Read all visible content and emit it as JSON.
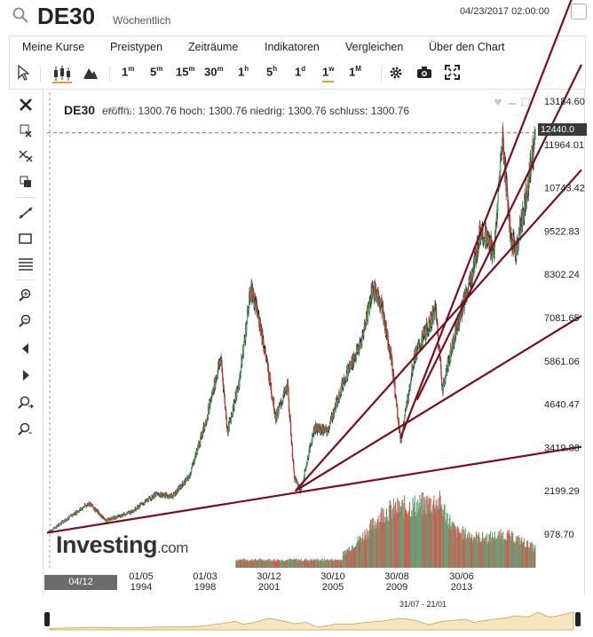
{
  "header": {
    "symbol": "DE30",
    "period": "Wöchentlich",
    "datetime": "04/23/2017 02:00:00"
  },
  "menu": [
    "Meine Kurse",
    "Preistypen",
    "Zeiträume",
    "Indikatoren",
    "Vergleichen",
    "Über den Chart"
  ],
  "toolbar": {
    "intervals": [
      {
        "num": "1",
        "unit": "m"
      },
      {
        "num": "5",
        "unit": "m"
      },
      {
        "num": "15",
        "unit": "m"
      },
      {
        "num": "30",
        "unit": "m"
      },
      {
        "num": "1",
        "unit": "h"
      },
      {
        "num": "5",
        "unit": "h"
      },
      {
        "num": "1",
        "unit": "d"
      },
      {
        "num": "1",
        "unit": "w"
      },
      {
        "num": "1",
        "unit": "M"
      }
    ],
    "active_interval": "1w"
  },
  "ohlc": {
    "symbol": "DE30",
    "text": "eröffn.: 1300.76 hoch: 1300.76 niedrig: 1300.76 schluss: 1300.76"
  },
  "current_price": "12440.0",
  "selection_tag": "04/12",
  "navigator_label": "31/07 - 21/01",
  "logo": {
    "main": "Investing",
    "suffix": ".com"
  },
  "colors": {
    "up": "#3cb371",
    "down": "#d9342b",
    "trendline": "#7a0d1e",
    "accent": "#e0a030"
  },
  "chart_data": {
    "type": "candlestick",
    "title": "DE30 Wöchentlich",
    "ylim": [
      0,
      13600
    ],
    "y_ticks": [
      "13184.60",
      "11964.01",
      "10743.42",
      "9522.83",
      "8302.24",
      "7081.65",
      "5861.06",
      "4640.47",
      "3419.88",
      "2199.29",
      "978.70"
    ],
    "x_ticks": [
      [
        "01/05",
        "1994"
      ],
      [
        "01/03",
        "1998"
      ],
      [
        "30/12",
        "2001"
      ],
      [
        "30/10",
        "2005"
      ],
      [
        "30/08",
        "2009"
      ],
      [
        "30/06",
        "2013"
      ]
    ],
    "x_range": [
      1988.0,
      2017.3
    ],
    "price_path": [
      [
        1988.0,
        1000
      ],
      [
        1990.5,
        1850
      ],
      [
        1991.5,
        1350
      ],
      [
        1993.0,
        1600
      ],
      [
        1994.5,
        2100
      ],
      [
        1995.5,
        2050
      ],
      [
        1996.5,
        2600
      ],
      [
        1997.5,
        4200
      ],
      [
        1998.4,
        6000
      ],
      [
        1998.8,
        3900
      ],
      [
        1999.5,
        5300
      ],
      [
        2000.2,
        8000
      ],
      [
        2000.8,
        6900
      ],
      [
        2001.7,
        4300
      ],
      [
        2002.4,
        5200
      ],
      [
        2002.8,
        2600
      ],
      [
        2003.2,
        2200
      ],
      [
        2004.0,
        4000
      ],
      [
        2004.8,
        3900
      ],
      [
        2005.8,
        5400
      ],
      [
        2006.8,
        6400
      ],
      [
        2007.5,
        8000
      ],
      [
        2008.0,
        7600
      ],
      [
        2008.6,
        6100
      ],
      [
        2009.2,
        3600
      ],
      [
        2010.0,
        6000
      ],
      [
        2011.3,
        7400
      ],
      [
        2011.7,
        5100
      ],
      [
        2012.5,
        6800
      ],
      [
        2013.5,
        8400
      ],
      [
        2014.0,
        9700
      ],
      [
        2014.8,
        9000
      ],
      [
        2015.3,
        12300
      ],
      [
        2015.8,
        9400
      ],
      [
        2016.1,
        9000
      ],
      [
        2016.6,
        10300
      ],
      [
        2017.0,
        11500
      ],
      [
        2017.3,
        12440
      ]
    ],
    "volume_peaks": [
      [
        2005.7,
        0.2
      ],
      [
        2007.0,
        0.5
      ],
      [
        2008.2,
        0.85
      ],
      [
        2009.0,
        0.9
      ],
      [
        2011.5,
        1.0
      ],
      [
        2012.5,
        0.55
      ],
      [
        2014.0,
        0.45
      ],
      [
        2015.5,
        0.5
      ],
      [
        2016.5,
        0.4
      ],
      [
        2017.2,
        0.3
      ]
    ],
    "trendlines": [
      [
        [
          1988.0,
          1000
        ],
        [
          2017.3,
          3250
        ]
      ],
      [
        [
          2002.9,
          2200
        ],
        [
          2017.3,
          6400
        ]
      ],
      [
        [
          2002.9,
          2200
        ],
        [
          2017.3,
          9900
        ]
      ],
      [
        [
          2009.2,
          3700
        ],
        [
          2017.3,
          13600
        ]
      ],
      [
        [
          2010.2,
          4800
        ],
        [
          2017.3,
          11700
        ]
      ]
    ],
    "reference_line": 12440.0
  }
}
